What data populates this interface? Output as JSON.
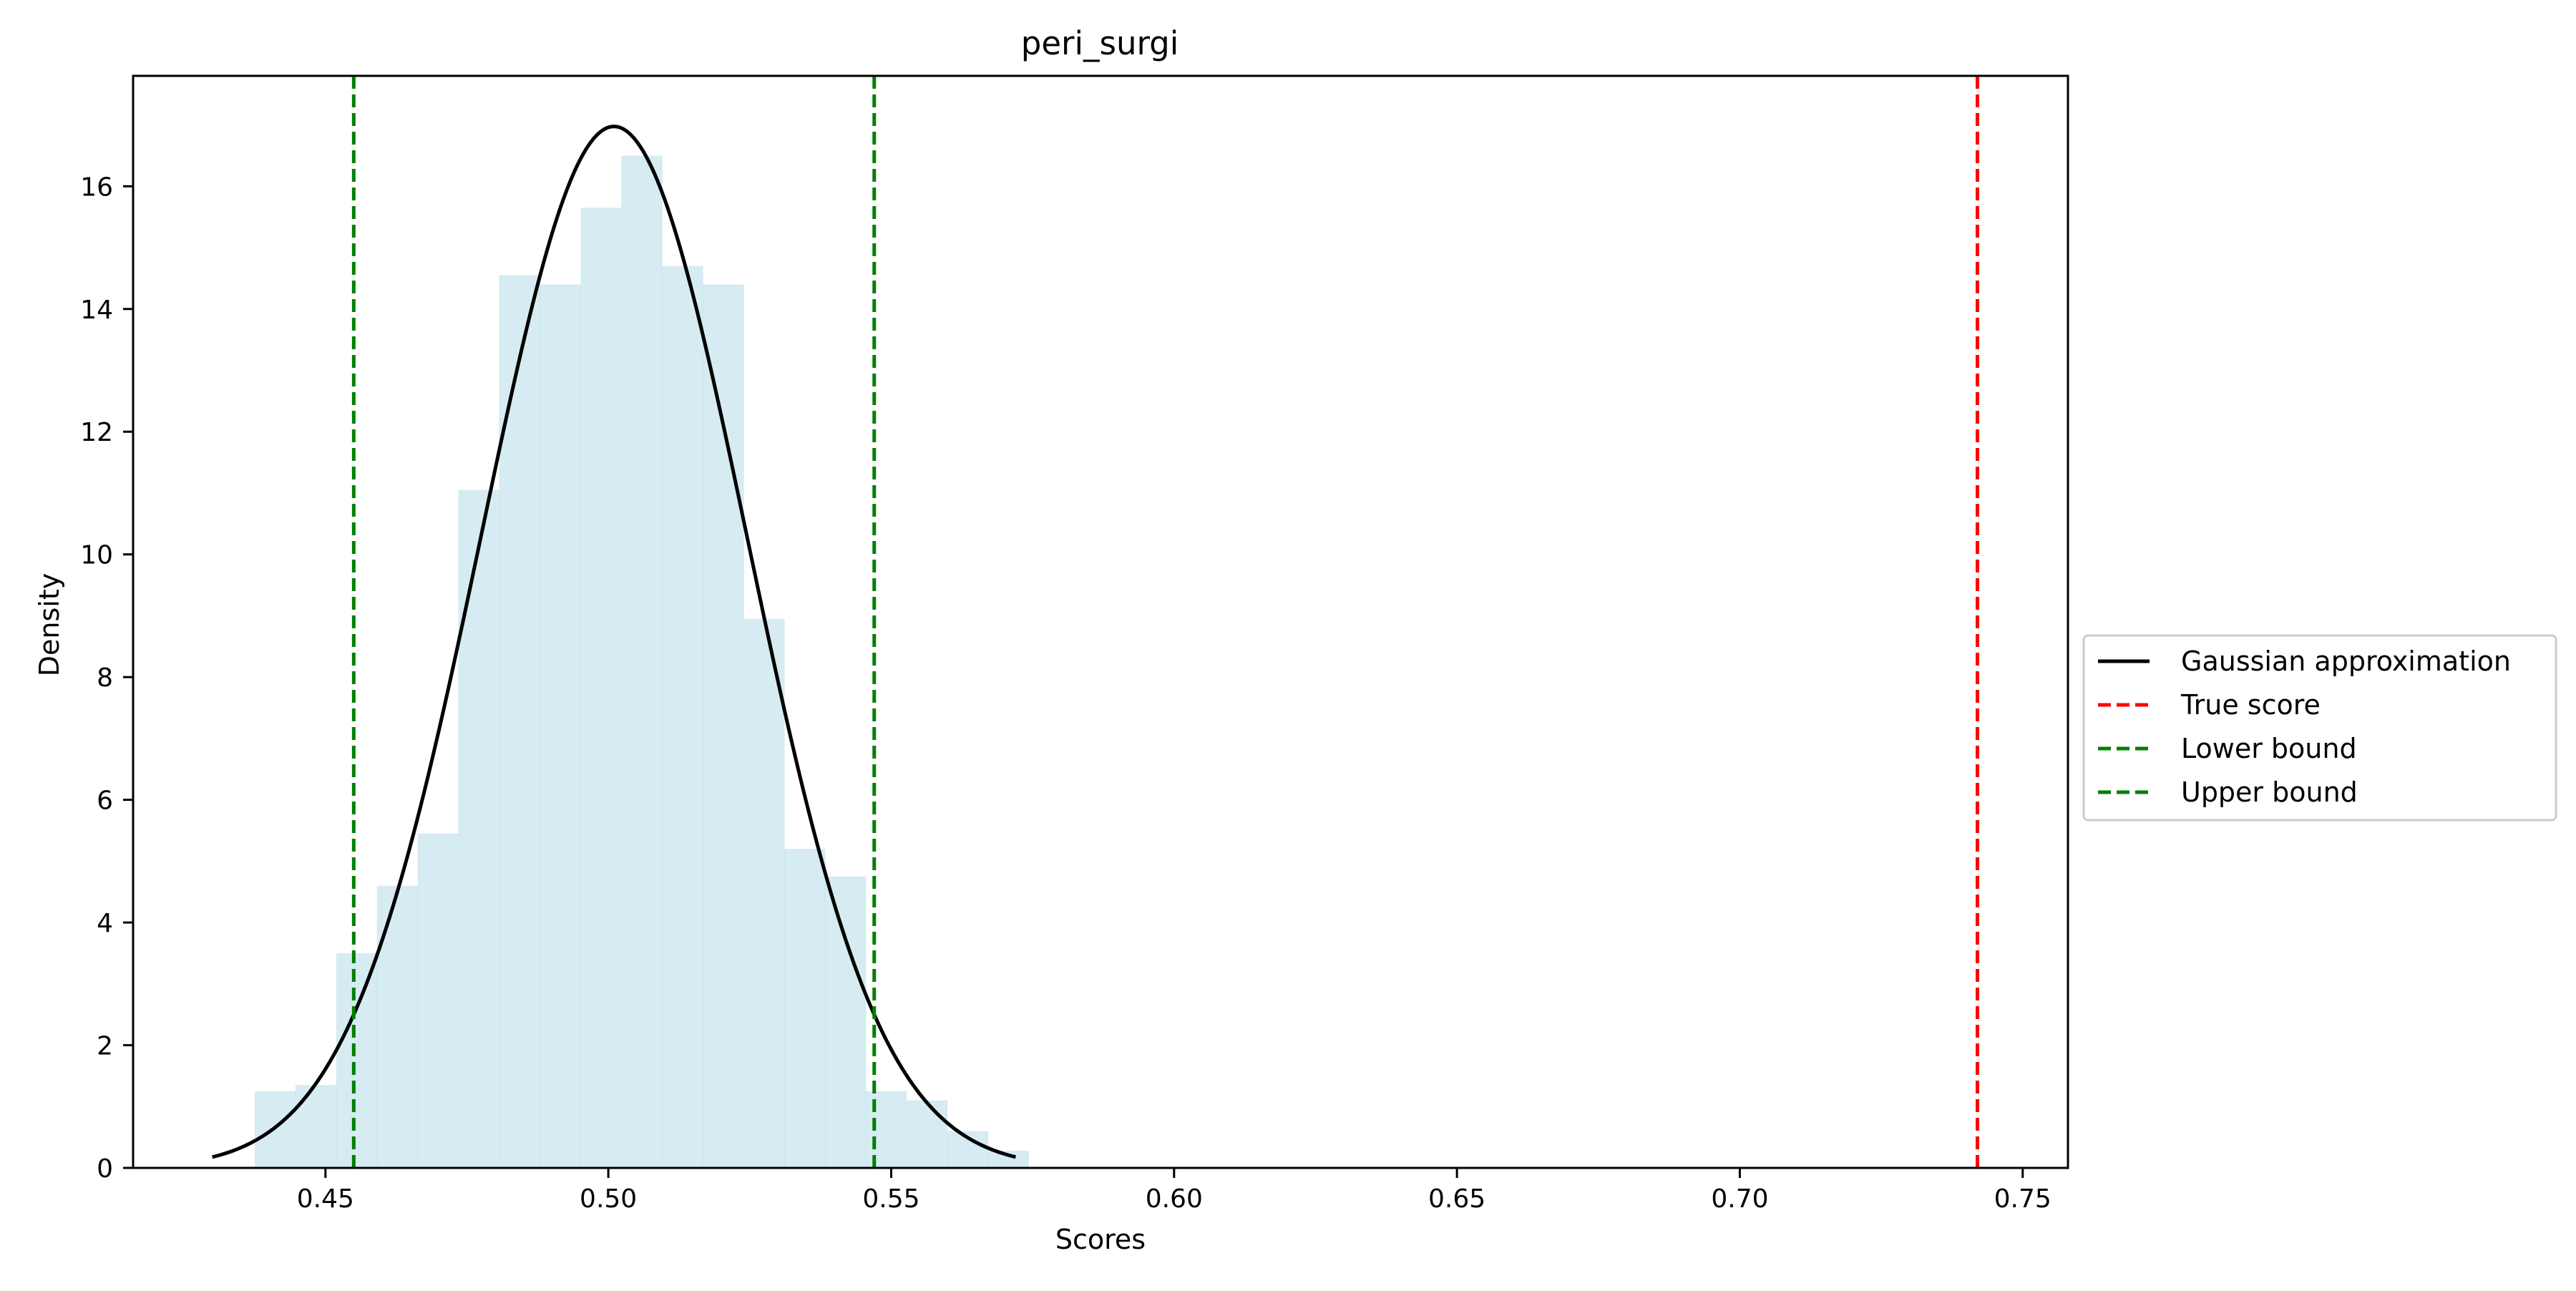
{
  "chart_data": {
    "type": "histogram",
    "title": "peri_surgi",
    "xlabel": "Scores",
    "ylabel": "Density",
    "xlim": [
      0.416,
      0.758
    ],
    "ylim": [
      0,
      17.8
    ],
    "xticks": [
      0.45,
      0.5,
      0.55,
      0.6,
      0.65,
      0.7,
      0.75
    ],
    "xtick_labels": [
      "0.45",
      "0.50",
      "0.55",
      "0.60",
      "0.65",
      "0.70",
      "0.75"
    ],
    "yticks": [
      0,
      2,
      4,
      6,
      8,
      10,
      12,
      14,
      16
    ],
    "ytick_labels": [
      "0",
      "2",
      "4",
      "6",
      "8",
      "10",
      "12",
      "14",
      "16"
    ],
    "histogram": {
      "color": "#add8e6",
      "alpha": 0.5,
      "bins": [
        {
          "x0": 0.4375,
          "x1": 0.4447,
          "density": 1.25
        },
        {
          "x0": 0.4447,
          "x1": 0.4519,
          "density": 1.35
        },
        {
          "x0": 0.4519,
          "x1": 0.4591,
          "density": 3.5
        },
        {
          "x0": 0.4591,
          "x1": 0.4663,
          "density": 4.6
        },
        {
          "x0": 0.4663,
          "x1": 0.4735,
          "density": 5.45
        },
        {
          "x0": 0.4735,
          "x1": 0.4807,
          "density": 11.05
        },
        {
          "x0": 0.4807,
          "x1": 0.4879,
          "density": 14.55
        },
        {
          "x0": 0.4879,
          "x1": 0.4951,
          "density": 14.4
        },
        {
          "x0": 0.4951,
          "x1": 0.5023,
          "density": 15.65
        },
        {
          "x0": 0.5023,
          "x1": 0.5095,
          "density": 16.5
        },
        {
          "x0": 0.5095,
          "x1": 0.5167,
          "density": 14.7
        },
        {
          "x0": 0.5167,
          "x1": 0.5239,
          "density": 14.4
        },
        {
          "x0": 0.5239,
          "x1": 0.5311,
          "density": 8.95
        },
        {
          "x0": 0.5311,
          "x1": 0.5383,
          "density": 5.2
        },
        {
          "x0": 0.5383,
          "x1": 0.5455,
          "density": 4.75
        },
        {
          "x0": 0.5455,
          "x1": 0.5527,
          "density": 1.25
        },
        {
          "x0": 0.5527,
          "x1": 0.5599,
          "density": 1.1
        },
        {
          "x0": 0.5599,
          "x1": 0.5671,
          "density": 0.6
        },
        {
          "x0": 0.5671,
          "x1": 0.5743,
          "density": 0.28
        }
      ]
    },
    "gaussian": {
      "mean": 0.501,
      "std": 0.0235,
      "x_range": [
        0.43,
        0.572
      ],
      "color": "#000000"
    },
    "vlines": [
      {
        "x": 0.742,
        "color": "#ff0000",
        "style": "dashed"
      },
      {
        "x": 0.455,
        "color": "#008000",
        "style": "dashed"
      },
      {
        "x": 0.547,
        "color": "#008000",
        "style": "dashed"
      }
    ],
    "legend": {
      "placement": "outside right, center",
      "entries": [
        {
          "label": "Gaussian approximation",
          "color": "#000000",
          "style": "solid"
        },
        {
          "label": "True score",
          "color": "#ff0000",
          "style": "dashed"
        },
        {
          "label": "Lower bound",
          "color": "#008000",
          "style": "dashed"
        },
        {
          "label": "Upper bound",
          "color": "#008000",
          "style": "dashed"
        }
      ]
    },
    "grid": false
  }
}
